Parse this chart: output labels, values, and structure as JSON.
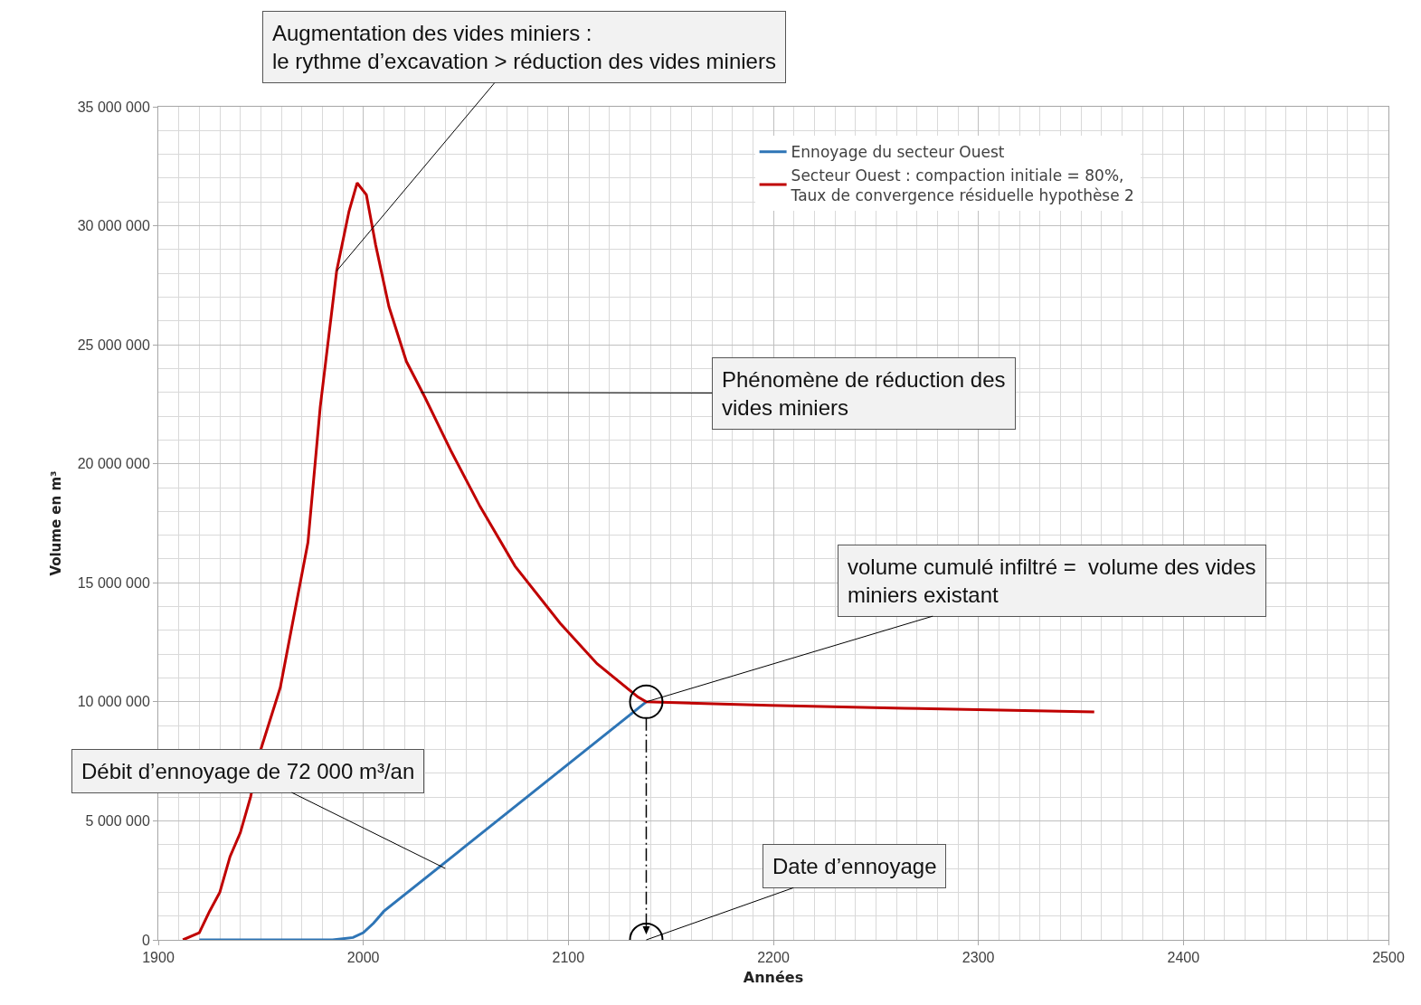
{
  "chart_data": {
    "type": "line",
    "xlabel": "Années",
    "ylabel": "Volume en m³",
    "series": [
      {
        "name": "Ennoyage du secteur Ouest",
        "color": "#2e75b6",
        "x": [
          1920,
          1985,
          1995,
          2000,
          2005,
          2010,
          2138
        ],
        "values": [
          0,
          0,
          100000,
          300000,
          700000,
          1200000,
          10000000
        ]
      },
      {
        "name": "Secteur Ouest : compaction initiale = 80%, Taux de convergence résiduelle hypothèse 2",
        "color": "#c00000",
        "x": [
          1912,
          1920,
          1925,
          1930,
          1935,
          1940,
          1945,
          1950,
          1959.5,
          1973,
          1979,
          1987,
          1993,
          1997,
          2001.5,
          2006,
          2012.5,
          2021,
          2030,
          2043,
          2057,
          2074,
          2096,
          2114,
          2134,
          2138,
          2198,
          2264,
          2356.5
        ],
        "values": [
          0,
          300000,
          1200000,
          2000000,
          3500000,
          4500000,
          6000000,
          8000000,
          10600000,
          16700000,
          22400000,
          28100000,
          30600000,
          31800000,
          31300000,
          29200000,
          26600000,
          24300000,
          22800000,
          20500000,
          18200000,
          15700000,
          13300000,
          11600000,
          10200000,
          10000000,
          9850000,
          9730000,
          9580000
        ]
      }
    ],
    "xlim": [
      1900,
      2500
    ],
    "xticks": [
      1900,
      2000,
      2100,
      2200,
      2300,
      2400,
      2500
    ],
    "ylim": [
      0,
      35000000
    ],
    "yticks": [
      {
        "value": 0,
        "label": "0"
      },
      {
        "value": 5000000,
        "label": "5 000 000"
      },
      {
        "value": 10000000,
        "label": "10 000 000"
      },
      {
        "value": 15000000,
        "label": "15 000 000"
      },
      {
        "value": 20000000,
        "label": "20 000 000"
      },
      {
        "value": 25000000,
        "label": "25 000 000"
      },
      {
        "value": 30000000,
        "label": "30 000 000"
      },
      {
        "value": 35000000,
        "label": "35 000 000"
      }
    ],
    "grid": true,
    "legend": "top right",
    "marker": "none",
    "line_style": "solid",
    "annotations": [
      {
        "text": "Augmentation des vides miniers :\nle rythme d’excavation > réduction des vides miniers",
        "x": 1987,
        "y": 28100000
      },
      {
        "text": "Phénomène de réduction des\nvides miniers",
        "x": 2028,
        "y": 23000000
      },
      {
        "text": "volume cumulé infiltré =  volume des vides\nminiers existant",
        "x": 2138,
        "y": 10000000
      },
      {
        "text": "Débit d’ennoyage de 72 000 m³/an",
        "x": 2040,
        "y": 3000000
      },
      {
        "text": "Date d’ennoyage",
        "x": 2138,
        "y": 0
      }
    ]
  }
}
